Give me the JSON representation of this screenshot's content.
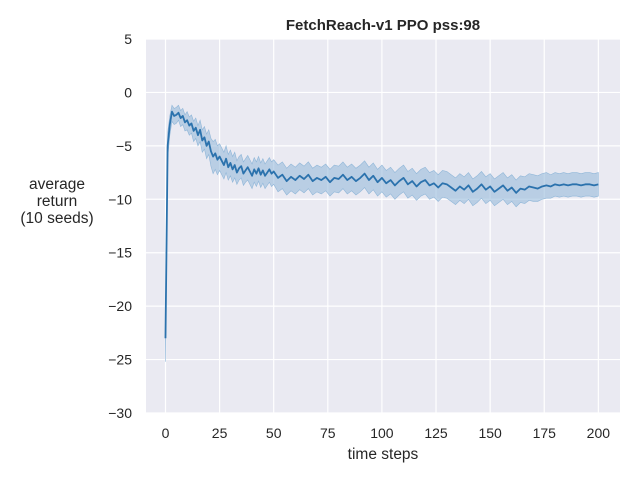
{
  "chart_data": {
    "type": "line",
    "title": "FetchReach-v1 PPO pss:98",
    "xlabel": "time steps",
    "ylabel_lines": [
      "average",
      "return",
      "(10 seeds)"
    ],
    "xlim": [
      -9,
      210
    ],
    "ylim": [
      -30,
      5
    ],
    "xticks": [
      0,
      25,
      50,
      75,
      100,
      125,
      150,
      175,
      200
    ],
    "yticks": [
      5,
      0,
      -5,
      -10,
      -15,
      -20,
      -25,
      -30
    ],
    "grid": true,
    "colors": {
      "background": "#eaeaf2",
      "grid": "#ffffff",
      "line": "#2b72ad",
      "band": "#8fb6d8"
    },
    "series": [
      {
        "x": [
          0,
          1,
          2,
          3,
          4,
          5,
          6,
          7,
          8,
          9,
          10,
          11,
          12,
          13,
          14,
          15,
          16,
          17,
          18,
          19,
          20,
          21,
          22,
          23,
          24,
          25,
          26,
          27,
          28,
          29,
          30,
          31,
          32,
          33,
          34,
          35,
          36,
          37,
          38,
          39,
          40,
          41,
          42,
          43,
          44,
          45,
          46,
          47,
          48,
          49,
          50,
          52,
          54,
          56,
          58,
          60,
          62,
          64,
          66,
          68,
          70,
          72,
          74,
          76,
          78,
          80,
          82,
          84,
          86,
          88,
          90,
          92,
          94,
          96,
          98,
          100,
          102,
          104,
          106,
          108,
          110,
          112,
          114,
          116,
          118,
          120,
          122,
          124,
          126,
          128,
          130,
          132,
          134,
          136,
          138,
          140,
          142,
          144,
          146,
          148,
          150,
          152,
          154,
          156,
          158,
          160,
          162,
          164,
          166,
          168,
          170,
          172,
          174,
          176,
          178,
          180,
          182,
          184,
          186,
          188,
          190,
          192,
          194,
          196,
          198,
          200
        ],
        "y": [
          -23,
          -5,
          -3,
          -1.8,
          -2.2,
          -2.1,
          -1.9,
          -2.4,
          -2.2,
          -2.8,
          -2.6,
          -3.1,
          -2.9,
          -3.6,
          -3.3,
          -4.0,
          -3.5,
          -4.5,
          -4.2,
          -5.0,
          -4.6,
          -5.5,
          -6.0,
          -5.7,
          -6.3,
          -6.0,
          -6.4,
          -6.8,
          -6.2,
          -7.0,
          -6.6,
          -7.2,
          -6.8,
          -7.5,
          -7.1,
          -6.9,
          -7.6,
          -7.3,
          -7.0,
          -7.4,
          -7.8,
          -7.2,
          -7.6,
          -7.1,
          -7.7,
          -7.3,
          -7.8,
          -7.5,
          -7.2,
          -7.6,
          -7.4,
          -8.0,
          -7.7,
          -8.3,
          -7.9,
          -8.2,
          -7.8,
          -8.1,
          -7.7,
          -8.3,
          -8.0,
          -8.2,
          -7.9,
          -8.4,
          -8.0,
          -8.1,
          -7.7,
          -8.2,
          -7.9,
          -8.3,
          -8.0,
          -7.6,
          -8.2,
          -7.8,
          -8.4,
          -8.0,
          -8.5,
          -8.2,
          -8.7,
          -8.3,
          -8.0,
          -8.6,
          -8.3,
          -8.8,
          -8.4,
          -8.2,
          -8.7,
          -8.5,
          -8.9,
          -8.5,
          -8.6,
          -8.9,
          -9.2,
          -8.8,
          -9.1,
          -8.7,
          -9.3,
          -9.0,
          -8.6,
          -9.1,
          -8.8,
          -9.3,
          -9.0,
          -8.7,
          -9.2,
          -8.9,
          -9.4,
          -9.0,
          -9.1,
          -8.8,
          -8.9,
          -9.0,
          -8.8,
          -8.7,
          -8.8,
          -8.6,
          -8.7,
          -8.6,
          -8.7,
          -8.6,
          -8.6,
          -8.7,
          -8.6,
          -8.6,
          -8.7,
          -8.6
        ],
        "lower": [
          -25.2,
          -6.2,
          -4.0,
          -2.7,
          -3.0,
          -2.9,
          -2.6,
          -3.2,
          -3.0,
          -3.6,
          -3.5,
          -4.0,
          -3.8,
          -4.6,
          -4.3,
          -5.0,
          -4.6,
          -5.6,
          -5.3,
          -6.2,
          -5.8,
          -6.9,
          -7.6,
          -7.2,
          -7.7,
          -7.3,
          -7.7,
          -8.1,
          -7.5,
          -8.2,
          -7.8,
          -8.4,
          -8.0,
          -8.6,
          -8.2,
          -8.0,
          -8.7,
          -8.4,
          -8.2,
          -8.6,
          -9.0,
          -8.4,
          -8.8,
          -8.3,
          -8.9,
          -8.5,
          -9.0,
          -8.7,
          -8.4,
          -8.8,
          -8.6,
          -9.3,
          -9.0,
          -9.6,
          -9.2,
          -9.5,
          -9.1,
          -9.4,
          -9.0,
          -9.6,
          -9.3,
          -9.5,
          -9.2,
          -9.7,
          -9.3,
          -9.4,
          -9.0,
          -9.5,
          -9.2,
          -9.6,
          -9.3,
          -8.9,
          -9.5,
          -9.1,
          -9.7,
          -9.3,
          -9.8,
          -9.5,
          -10.0,
          -9.6,
          -9.3,
          -9.9,
          -9.6,
          -10.1,
          -9.7,
          -9.5,
          -10.0,
          -9.8,
          -10.2,
          -9.8,
          -9.9,
          -10.2,
          -10.5,
          -10.1,
          -10.4,
          -10.0,
          -10.6,
          -10.3,
          -9.9,
          -10.4,
          -10.1,
          -10.6,
          -10.3,
          -10.0,
          -10.5,
          -10.2,
          -10.7,
          -10.3,
          -10.4,
          -10.1,
          -10.2,
          -10.2,
          -10.0,
          -9.9,
          -9.9,
          -9.7,
          -9.8,
          -9.7,
          -9.8,
          -9.7,
          -9.7,
          -9.8,
          -9.7,
          -9.7,
          -9.8,
          -9.7
        ],
        "upper": [
          -21.0,
          -3.8,
          -2.2,
          -1.2,
          -1.5,
          -1.4,
          -1.2,
          -1.7,
          -1.5,
          -2.1,
          -1.8,
          -2.3,
          -2.1,
          -2.7,
          -2.4,
          -3.1,
          -2.6,
          -3.5,
          -3.2,
          -3.9,
          -3.5,
          -4.3,
          -4.6,
          -4.4,
          -5.0,
          -4.8,
          -5.2,
          -5.6,
          -5.0,
          -5.8,
          -5.4,
          -6.0,
          -5.6,
          -6.4,
          -6.0,
          -5.8,
          -6.5,
          -6.2,
          -5.9,
          -6.3,
          -6.7,
          -6.1,
          -6.5,
          -6.0,
          -6.6,
          -6.2,
          -6.7,
          -6.4,
          -6.1,
          -6.5,
          -6.3,
          -6.8,
          -6.5,
          -7.1,
          -6.7,
          -7.0,
          -6.6,
          -6.9,
          -6.5,
          -7.1,
          -6.8,
          -7.0,
          -6.7,
          -7.2,
          -6.8,
          -6.9,
          -6.5,
          -7.0,
          -6.7,
          -7.1,
          -6.8,
          -6.4,
          -7.0,
          -6.6,
          -7.2,
          -6.8,
          -7.3,
          -7.0,
          -7.5,
          -7.1,
          -6.8,
          -7.4,
          -7.1,
          -7.6,
          -7.2,
          -7.0,
          -7.5,
          -7.3,
          -7.7,
          -7.3,
          -7.4,
          -7.7,
          -8.0,
          -7.6,
          -7.9,
          -7.5,
          -8.1,
          -7.8,
          -7.4,
          -7.9,
          -7.6,
          -8.1,
          -7.8,
          -7.5,
          -8.0,
          -7.7,
          -8.2,
          -7.8,
          -7.9,
          -7.6,
          -7.7,
          -7.8,
          -7.6,
          -7.5,
          -7.7,
          -7.5,
          -7.6,
          -7.5,
          -7.6,
          -7.5,
          -7.5,
          -7.6,
          -7.5,
          -7.5,
          -7.6,
          -7.5
        ]
      }
    ]
  }
}
